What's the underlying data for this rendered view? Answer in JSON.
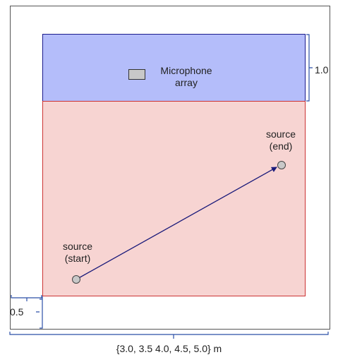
{
  "labels": {
    "microphone_array": "Microphone\narray",
    "source_end": "source\n(end)",
    "source_start": "source\n(start)",
    "dimension_top_right": "1.0",
    "dimension_bottom_left": "0.5",
    "dimension_width": "{3.0, 3.5 4.0, 4.5, 5.0} m"
  },
  "colors": {
    "outer_border": "#555555",
    "mic_region_fill": "#b4bdfa",
    "mic_region_stroke": "#1a1a8c",
    "source_region_fill": "#f7d4d2",
    "source_region_stroke": "#cc3333",
    "bracket": "#2b4fa8",
    "arrow": "#1a1a7a",
    "marker_fill": "#c8c8c8",
    "marker_stroke": "#444444"
  }
}
